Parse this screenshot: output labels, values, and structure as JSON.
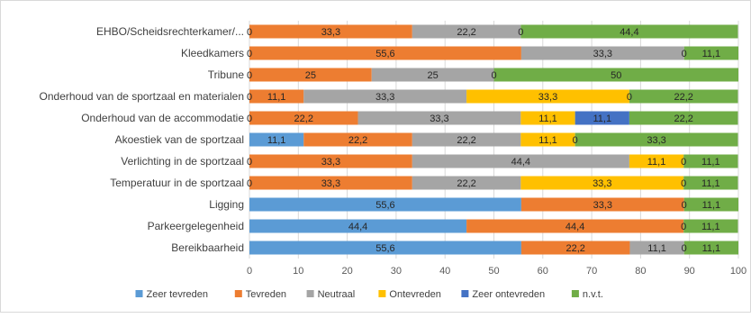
{
  "chart_data": {
    "type": "bar",
    "orientation": "horizontal",
    "stacked": true,
    "xlim": [
      0,
      100
    ],
    "x_ticks": [
      "0",
      "10",
      "20",
      "30",
      "40",
      "50",
      "60",
      "70",
      "80",
      "90",
      "100"
    ],
    "grid": "vertical",
    "legend_position": "bottom",
    "categories": [
      "EHBO/Scheidsrechterkamer/...",
      "Kleedkamers",
      "Tribune",
      "Onderhoud van de sportzaal en materialen",
      "Onderhoud van de accommodatie",
      "Akoestiek van de sportzaal",
      "Verlichting in de sportzaal",
      "Temperatuur in de sportzaal",
      "Ligging",
      "Parkeergelegenheid",
      "Bereikbaarheid"
    ],
    "series": [
      {
        "name": "Zeer tevreden",
        "color": "#5b9bd5",
        "values": [
          0,
          0,
          0,
          0,
          0,
          11.1,
          0,
          0,
          55.6,
          44.4,
          55.6
        ]
      },
      {
        "name": "Tevreden",
        "color": "#ed7d31",
        "values": [
          33.3,
          55.6,
          25,
          11.1,
          22.2,
          22.2,
          33.3,
          33.3,
          33.3,
          44.4,
          22.2
        ]
      },
      {
        "name": "Neutraal",
        "color": "#a5a5a5",
        "values": [
          22.2,
          33.3,
          25,
          33.3,
          33.3,
          22.2,
          44.4,
          22.2,
          0,
          0,
          11.1
        ]
      },
      {
        "name": "Ontevreden",
        "color": "#ffc000",
        "values": [
          0,
          0,
          0,
          33.3,
          11.1,
          11.1,
          11.1,
          33.3,
          0,
          0,
          0
        ]
      },
      {
        "name": "Zeer ontevreden",
        "color": "#4472c4",
        "values": [
          0,
          0,
          0,
          0,
          11.1,
          0,
          0,
          0,
          0,
          0,
          0
        ]
      },
      {
        "name": "n.v.t.",
        "color": "#70ad47",
        "values": [
          44.4,
          11.1,
          50,
          22.2,
          22.2,
          33.3,
          11.1,
          11.1,
          11.1,
          11.1,
          11.1
        ]
      }
    ],
    "data_labels": [
      [
        "0",
        "33,3",
        "22,2",
        "0",
        "",
        "44,4"
      ],
      [
        "0",
        "55,6",
        "33,3",
        "0",
        "",
        "11,1"
      ],
      [
        "0",
        "25",
        "25",
        "0",
        "",
        "50"
      ],
      [
        "0",
        "11,1",
        "33,3",
        "33,3",
        "0",
        "22,2"
      ],
      [
        "0",
        "22,2",
        "33,3",
        "11,1",
        "11,1",
        "22,2"
      ],
      [
        "11,1",
        "22,2",
        "22,2",
        "11,1",
        "0",
        "33,3"
      ],
      [
        "0",
        "33,3",
        "44,4",
        "11,1",
        "0",
        "11,1"
      ],
      [
        "0",
        "33,3",
        "22,2",
        "33,3",
        "0",
        "11,1"
      ],
      [
        "55,6",
        "33,3",
        "",
        "",
        "0",
        "11,1"
      ],
      [
        "44,4",
        "44,4",
        "",
        "",
        "0",
        "11,1"
      ],
      [
        "55,6",
        "22,2",
        "11,1",
        "",
        "0",
        "11,1"
      ]
    ]
  }
}
